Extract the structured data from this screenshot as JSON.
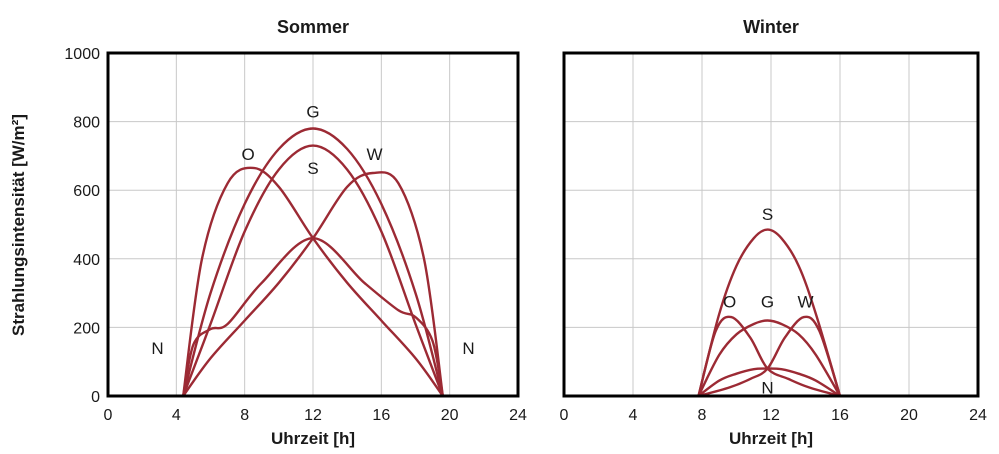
{
  "y_axis_label": "Strahlungsintensität [W/m²]",
  "colors": {
    "curve": "#9c2a34",
    "grid": "#c8c8c8",
    "frame": "#000000"
  },
  "chart_data": [
    {
      "type": "line",
      "title": "Sommer",
      "xlabel": "Uhrzeit [h]",
      "ylabel": "Strahlungsintensität [W/m²]",
      "xlim": [
        0,
        24
      ],
      "ylim": [
        0,
        1000
      ],
      "xticks": [
        "0",
        "4",
        "8",
        "12",
        "16",
        "20",
        "24"
      ],
      "yticks": [
        "0",
        "200",
        "400",
        "600",
        "800",
        "1000"
      ],
      "grid": true,
      "series": [
        {
          "name": "G",
          "x": [
            4.4,
            6,
            8,
            10,
            12,
            14,
            16,
            18,
            19.6
          ],
          "y": [
            0,
            300,
            560,
            720,
            780,
            720,
            560,
            300,
            0
          ]
        },
        {
          "name": "S",
          "x": [
            4.4,
            6,
            8,
            10,
            12,
            14,
            16,
            18,
            19.6
          ],
          "y": [
            0,
            210,
            480,
            660,
            730,
            660,
            480,
            210,
            0
          ]
        },
        {
          "name": "O",
          "x": [
            4.4,
            5.5,
            7,
            8.5,
            10,
            12,
            14,
            16,
            18,
            19.6
          ],
          "y": [
            0,
            400,
            620,
            665,
            610,
            460,
            330,
            220,
            110,
            0
          ]
        },
        {
          "name": "W",
          "x": [
            4.4,
            6,
            8,
            10,
            12,
            14,
            15.5,
            17,
            18.5,
            19.6
          ],
          "y": [
            0,
            110,
            220,
            330,
            460,
            610,
            650,
            620,
            400,
            0
          ]
        },
        {
          "name": "N",
          "x": [
            4.4,
            5,
            6,
            7,
            9,
            12,
            15,
            17,
            18,
            19,
            19.6
          ],
          "y": [
            0,
            150,
            195,
            210,
            330,
            460,
            330,
            250,
            230,
            160,
            0
          ]
        }
      ],
      "labels": [
        {
          "text": "G",
          "x": 12,
          "y": 830
        },
        {
          "text": "S",
          "x": 12,
          "y": 665
        },
        {
          "text": "O",
          "x": 8.2,
          "y": 705
        },
        {
          "text": "W",
          "x": 15.6,
          "y": 705
        },
        {
          "text": "N",
          "x": 2.9,
          "y": 140
        },
        {
          "text": "N",
          "x": 21.1,
          "y": 140
        }
      ]
    },
    {
      "type": "line",
      "title": "Winter",
      "xlabel": "Uhrzeit [h]",
      "xlim": [
        0,
        24
      ],
      "ylim": [
        0,
        1000
      ],
      "xticks": [
        "0",
        "4",
        "8",
        "12",
        "16",
        "20",
        "24"
      ],
      "grid": true,
      "series": [
        {
          "name": "S",
          "x": [
            7.8,
            9,
            10,
            11,
            11.8,
            12.6,
            13.6,
            14.6,
            16
          ],
          "y": [
            0,
            240,
            380,
            460,
            485,
            460,
            380,
            240,
            0
          ]
        },
        {
          "name": "G",
          "x": [
            7.8,
            9,
            10,
            11,
            11.8,
            12.6,
            13.6,
            14.6,
            16
          ],
          "y": [
            0,
            120,
            180,
            210,
            220,
            210,
            180,
            120,
            0
          ]
        },
        {
          "name": "O",
          "x": [
            7.8,
            8.8,
            9.7,
            10.8,
            11.8,
            13,
            14.2,
            16
          ],
          "y": [
            0,
            190,
            230,
            170,
            80,
            50,
            25,
            0
          ]
        },
        {
          "name": "W",
          "x": [
            7.8,
            9.6,
            10.8,
            11.8,
            12.8,
            13.9,
            14.8,
            16
          ],
          "y": [
            0,
            25,
            50,
            80,
            170,
            230,
            190,
            0
          ]
        },
        {
          "name": "N",
          "x": [
            7.8,
            9,
            10,
            11,
            11.8,
            12.6,
            13.6,
            14.6,
            16
          ],
          "y": [
            0,
            45,
            65,
            78,
            80,
            78,
            65,
            45,
            0
          ]
        }
      ],
      "labels": [
        {
          "text": "S",
          "x": 11.8,
          "y": 530
        },
        {
          "text": "O",
          "x": 9.6,
          "y": 275
        },
        {
          "text": "G",
          "x": 11.8,
          "y": 275
        },
        {
          "text": "W",
          "x": 14.0,
          "y": 275
        },
        {
          "text": "N",
          "x": 11.8,
          "y": 25
        }
      ]
    }
  ]
}
